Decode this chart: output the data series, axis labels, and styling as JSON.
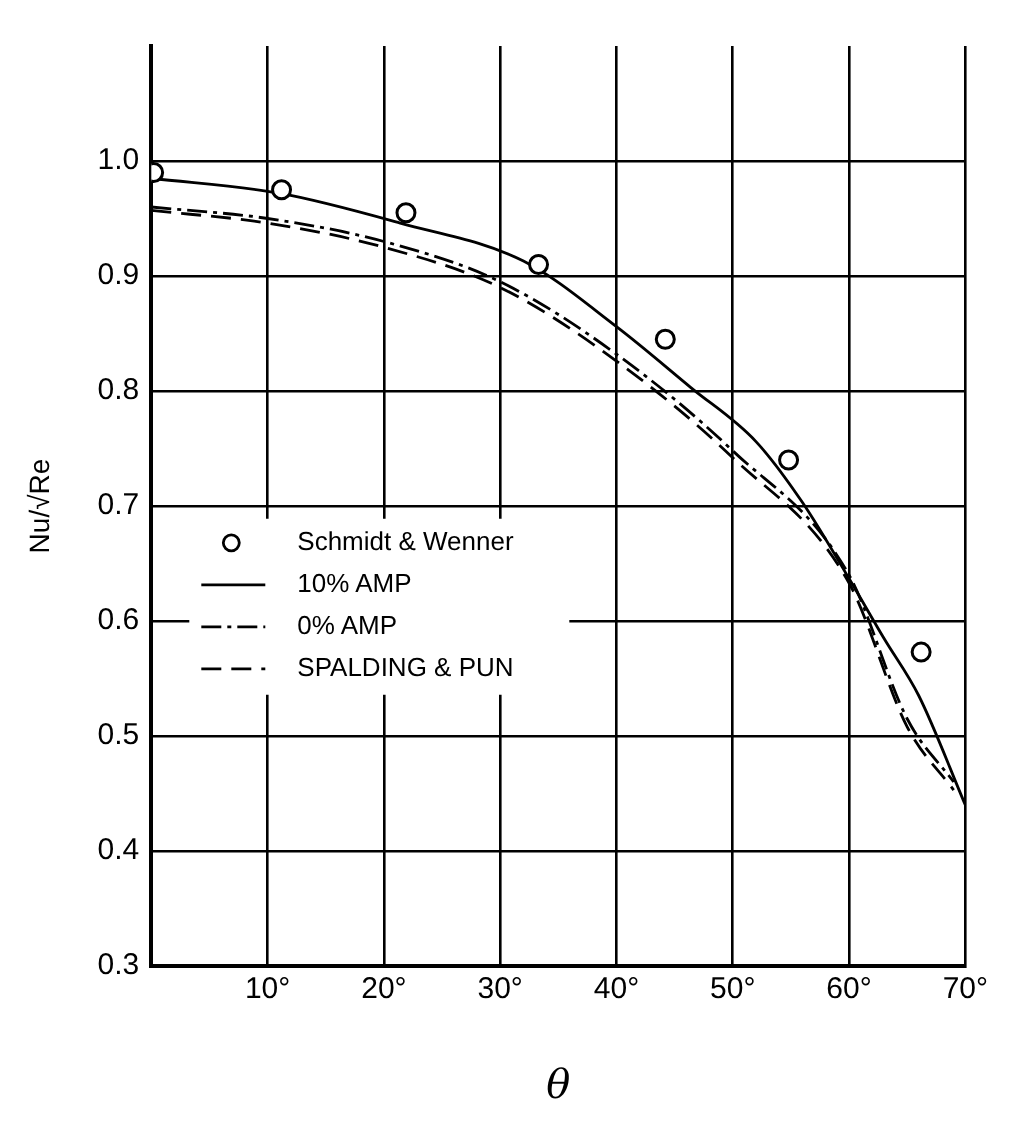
{
  "chart_data": {
    "type": "line",
    "xlabel": "θ",
    "ylabel": "Nu/√Re",
    "xlim": [
      0,
      70
    ],
    "ylim": [
      0.3,
      1.1
    ],
    "xticks": [
      {
        "value": 10,
        "label": "10°"
      },
      {
        "value": 20,
        "label": "20°"
      },
      {
        "value": 30,
        "label": "30°"
      },
      {
        "value": 40,
        "label": "40°"
      },
      {
        "value": 50,
        "label": "50°"
      },
      {
        "value": 60,
        "label": "60°"
      },
      {
        "value": 70,
        "label": "70°"
      }
    ],
    "yticks": [
      {
        "value": 0.3,
        "label": "0.3"
      },
      {
        "value": 0.4,
        "label": "0.4"
      },
      {
        "value": 0.5,
        "label": "0.5"
      },
      {
        "value": 0.6,
        "label": "0.6"
      },
      {
        "value": 0.7,
        "label": "0.7"
      },
      {
        "value": 0.8,
        "label": "0.8"
      },
      {
        "value": 0.9,
        "label": "0.9"
      },
      {
        "value": 1.0,
        "label": "1.0"
      }
    ],
    "grid": true,
    "legend": "left",
    "series": [
      {
        "name": "Schmidt & Wenner",
        "type": "scatter",
        "marker": "circle",
        "color": "#000000",
        "x": [
          0.2,
          11.2,
          21.9,
          33.3,
          44.2,
          54.8,
          66.2
        ],
        "values": [
          0.99,
          0.975,
          0.955,
          0.91,
          0.845,
          0.74,
          0.573
        ]
      },
      {
        "name": "10% AMP",
        "line_style": "solid",
        "color": "#000000",
        "x": [
          0,
          11,
          21.4,
          32,
          40,
          46.4,
          52,
          56,
          60,
          63,
          66,
          70
        ],
        "values": [
          0.985,
          0.972,
          0.946,
          0.913,
          0.856,
          0.803,
          0.756,
          0.703,
          0.637,
          0.585,
          0.535,
          0.44
        ]
      },
      {
        "name": "0% AMP",
        "line_style": "dashdot",
        "color": "#000000",
        "x": [
          0,
          10,
          20,
          30,
          40,
          50,
          60,
          65,
          69
        ],
        "values": [
          0.96,
          0.95,
          0.93,
          0.895,
          0.832,
          0.748,
          0.64,
          0.515,
          0.46
        ]
      },
      {
        "name": "SPALDING & PUN",
        "line_style": "dashed",
        "color": "#000000",
        "x": [
          0,
          10,
          20,
          30,
          40,
          50,
          60,
          65,
          69
        ],
        "values": [
          0.957,
          0.946,
          0.925,
          0.89,
          0.826,
          0.742,
          0.633,
          0.508,
          0.453
        ]
      }
    ]
  }
}
